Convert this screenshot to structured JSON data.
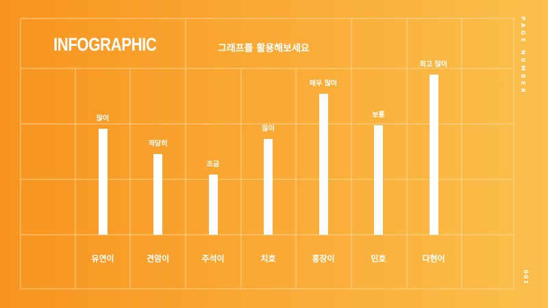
{
  "header": {
    "title": "INFOGRAPHIC",
    "subtitle": "그래프를 활용해보세요"
  },
  "side": {
    "page_label": "PAGE NUMBER",
    "page_number": "001"
  },
  "colors": {
    "background_start": "#f7941f",
    "background_end": "#fbbf4b",
    "bar": "#ffffff",
    "grid": "#ffe2b0"
  },
  "chart_data": {
    "type": "bar",
    "categories": [
      "유연이",
      "견암이",
      "주석이",
      "치호",
      "홍장이",
      "민호",
      "다현어"
    ],
    "values": [
      155,
      118,
      88,
      140,
      206,
      160,
      234
    ],
    "value_labels": [
      "많이",
      "적당히",
      "조금",
      "많이",
      "매우 많이",
      "보통",
      "최고 많이"
    ],
    "title": "",
    "xlabel": "",
    "ylabel": "",
    "ylim": [
      0,
      240
    ],
    "grid": true,
    "legend": "none"
  }
}
